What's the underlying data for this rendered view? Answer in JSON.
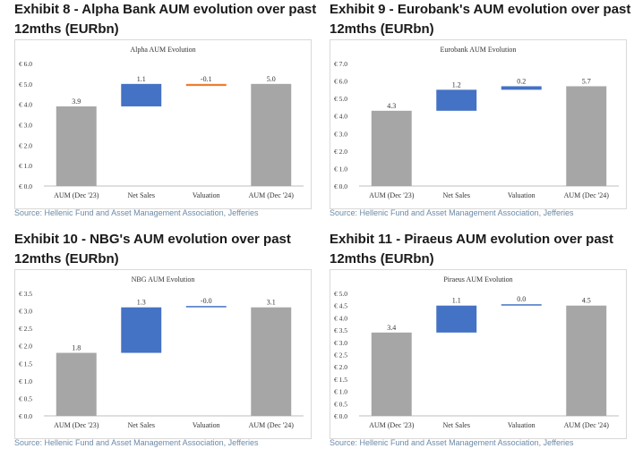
{
  "exhibits": [
    {
      "title_line1": "Exhibit 8 - Alpha Bank AUM evolution over past",
      "title_line2": "12mths (EURbn)",
      "source": "Source: Hellenic Fund and Asset Management Association, Jefferies"
    },
    {
      "title_line1": "Exhibit 9 - Eurobank's AUM evolution over past",
      "title_line2": "12mths (EURbn)",
      "source": "Source: Hellenic Fund and Asset Management Association, Jefferies"
    },
    {
      "title_line1": "Exhibit 10 - NBG's AUM evolution over past",
      "title_line2": "12mths (EURbn)",
      "source": "Source: Hellenic Fund and Asset Management Association, Jefferies"
    },
    {
      "title_line1": "Exhibit 11 - Piraeus AUM evolution over past",
      "title_line2": "12mths (EURbn)",
      "source": "Source: Hellenic Fund and Asset Management Association, Jefferies"
    }
  ],
  "colors": {
    "total": "#a6a6a6",
    "increase": "#4472c4",
    "decrease": "#ed7d31",
    "axis": "#bfbfbf",
    "text": "#333333"
  },
  "chart_data": [
    {
      "type": "bar",
      "subtype": "waterfall",
      "title": "Alpha AUM Evolution",
      "categories": [
        "AUM (Dec '23)",
        "Net Sales",
        "Valuation",
        "AUM (Dec '24)"
      ],
      "values": [
        3.9,
        1.1,
        -0.1,
        5.0
      ],
      "labels": [
        "3.9",
        "1.1",
        "-0.1",
        "5.0"
      ],
      "kinds": [
        "total",
        "delta",
        "delta",
        "total"
      ],
      "ylim": [
        0,
        6
      ],
      "yticks": [
        0,
        1,
        2,
        3,
        4,
        5,
        6
      ],
      "ytick_labels": [
        "€ 0.0",
        "€ 1.0",
        "€ 2.0",
        "€ 3.0",
        "€ 4.0",
        "€ 5.0",
        "€ 6.0"
      ],
      "grid": false
    },
    {
      "type": "bar",
      "subtype": "waterfall",
      "title": "Eurobank AUM Evolution",
      "categories": [
        "AUM (Dec '23)",
        "Net Sales",
        "Valuation",
        "AUM (Dec '24)"
      ],
      "values": [
        4.3,
        1.2,
        0.2,
        5.7
      ],
      "labels": [
        "4.3",
        "1.2",
        "0.2",
        "5.7"
      ],
      "kinds": [
        "total",
        "delta",
        "delta",
        "total"
      ],
      "ylim": [
        0,
        7
      ],
      "yticks": [
        0,
        1,
        2,
        3,
        4,
        5,
        6,
        7
      ],
      "ytick_labels": [
        "€ 0.0",
        "€ 1.0",
        "€ 2.0",
        "€ 3.0",
        "€ 4.0",
        "€ 5.0",
        "€ 6.0",
        "€ 7.0"
      ],
      "grid": false
    },
    {
      "type": "bar",
      "subtype": "waterfall",
      "title": "NBG AUM Evolution",
      "categories": [
        "AUM (Dec '23)",
        "Net Sales",
        "Valuation",
        "AUM (Dec '24)"
      ],
      "values": [
        1.8,
        1.3,
        -0.0,
        3.1
      ],
      "labels": [
        "1.8",
        "1.3",
        "-0.0",
        "3.1"
      ],
      "kinds": [
        "total",
        "delta",
        "delta",
        "total"
      ],
      "ylim": [
        0,
        3.5
      ],
      "yticks": [
        0,
        0.5,
        1,
        1.5,
        2,
        2.5,
        3,
        3.5
      ],
      "ytick_labels": [
        "€ 0.0",
        "€ 0.5",
        "€ 1.0",
        "€ 1.5",
        "€ 2.0",
        "€ 2.5",
        "€ 3.0",
        "€ 3.5"
      ],
      "grid": false
    },
    {
      "type": "bar",
      "subtype": "waterfall",
      "title": "Piraeus AUM Evolution",
      "categories": [
        "AUM (Dec '23)",
        "Net Sales",
        "Valuation",
        "AUM (Dec '24)"
      ],
      "values": [
        3.4,
        1.1,
        0.0,
        4.5
      ],
      "labels": [
        "3.4",
        "1.1",
        "0.0",
        "4.5"
      ],
      "kinds": [
        "total",
        "delta",
        "delta",
        "total"
      ],
      "ylim": [
        0,
        5
      ],
      "yticks": [
        0,
        0.5,
        1,
        1.5,
        2,
        2.5,
        3,
        3.5,
        4,
        4.5,
        5
      ],
      "ytick_labels": [
        "€ 0.0",
        "€ 0.5",
        "€ 1.0",
        "€ 1.5",
        "€ 2.0",
        "€ 2.5",
        "€ 3.0",
        "€ 3.5",
        "€ 4.0",
        "€ 4.5",
        "€ 5.0"
      ],
      "grid": false
    }
  ]
}
